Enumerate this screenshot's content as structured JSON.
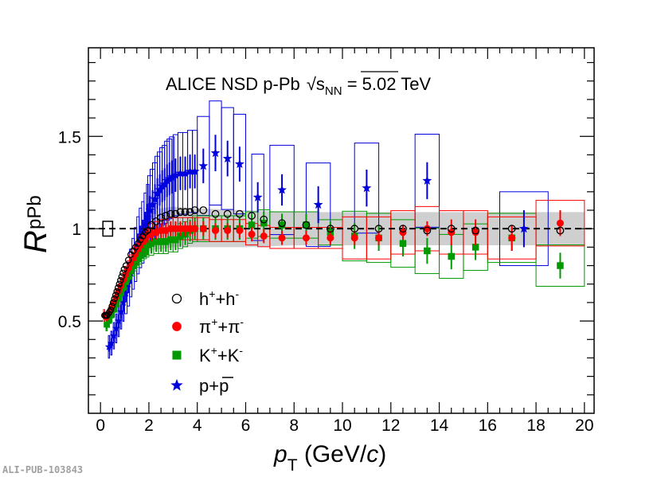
{
  "chart_data": {
    "type": "scatter",
    "title": {
      "prefix": "ALICE NSD p-Pb ",
      "sqrt_symbol": "√",
      "sqrt_var": "s",
      "sqrt_sub": "NN",
      "suffix": " = 5.02 TeV"
    },
    "xlabel": {
      "var": "p",
      "sub": "T",
      "unit_open": " (GeV/",
      "unit_var": "c",
      "unit_close": ")"
    },
    "ylabel": {
      "var": "R",
      "sub": "pPb"
    },
    "xlim": [
      -0.5,
      20.4
    ],
    "ylim": [
      0.0,
      1.98
    ],
    "xticks": [
      0,
      2,
      4,
      6,
      8,
      10,
      12,
      14,
      16,
      18,
      20
    ],
    "xtick_labels": [
      "0",
      "2",
      "4",
      "6",
      "8",
      "10",
      "12",
      "14",
      "16",
      "18",
      "20"
    ],
    "yticks": [
      0.5,
      1.0,
      1.5
    ],
    "ytick_labels": [
      "0.5",
      "1",
      "1.5"
    ],
    "reference_line": 1.0,
    "normalization_box": {
      "x": [
        0.1,
        0.5
      ],
      "y": [
        0.96,
        1.04
      ]
    },
    "gray_band": [
      [
        2.0,
        0.88,
        1.1
      ],
      [
        3.0,
        0.9,
        1.12
      ],
      [
        4.0,
        0.9,
        1.11
      ],
      [
        6.0,
        0.9,
        1.1
      ],
      [
        8.0,
        0.91,
        1.09
      ],
      [
        10.0,
        0.91,
        1.09
      ],
      [
        12.0,
        0.91,
        1.09
      ],
      [
        14.0,
        0.91,
        1.09
      ],
      [
        16.0,
        0.91,
        1.09
      ],
      [
        20.0,
        0.91,
        1.09
      ]
    ],
    "credit": "ALI-PUB-103843",
    "series": [
      {
        "name": "h⁺+h⁻",
        "legend_parts": [
          "h",
          "+",
          "+h",
          "-"
        ],
        "marker": "open-circle",
        "color": "#000000",
        "x": [
          0.175,
          0.225,
          0.275,
          0.325,
          0.375,
          0.425,
          0.475,
          0.525,
          0.575,
          0.625,
          0.675,
          0.725,
          0.775,
          0.825,
          0.875,
          0.925,
          0.975,
          1.05,
          1.15,
          1.25,
          1.35,
          1.45,
          1.55,
          1.65,
          1.75,
          1.85,
          1.95,
          2.1,
          2.3,
          2.5,
          2.7,
          2.9,
          3.1,
          3.3,
          3.5,
          3.7,
          3.9,
          4.25,
          4.75,
          5.25,
          5.75,
          6.25,
          6.75,
          7.5,
          8.5,
          9.5,
          10.5,
          11.5,
          12.5,
          13.5,
          14.5,
          15.5,
          17.0,
          19.0
        ],
        "y": [
          0.53,
          0.53,
          0.53,
          0.54,
          0.55,
          0.56,
          0.58,
          0.6,
          0.62,
          0.64,
          0.66,
          0.68,
          0.7,
          0.72,
          0.74,
          0.76,
          0.78,
          0.8,
          0.83,
          0.86,
          0.88,
          0.9,
          0.92,
          0.94,
          0.96,
          0.98,
          0.99,
          1.02,
          1.04,
          1.06,
          1.07,
          1.08,
          1.08,
          1.09,
          1.09,
          1.09,
          1.1,
          1.1,
          1.08,
          1.08,
          1.08,
          1.07,
          1.05,
          1.03,
          1.02,
          1.0,
          1.0,
          1.0,
          1.0,
          0.99,
          1.0,
          0.99,
          1.0,
          0.99
        ]
      },
      {
        "name": "π⁺+π⁻",
        "legend_parts": [
          "π",
          "+",
          "+π",
          "-"
        ],
        "marker": "filled-circle",
        "color": "#ff0000",
        "x": [
          0.15,
          0.25,
          0.35,
          0.45,
          0.55,
          0.65,
          0.75,
          0.85,
          0.95,
          1.05,
          1.15,
          1.25,
          1.35,
          1.45,
          1.55,
          1.65,
          1.75,
          1.85,
          1.95,
          2.1,
          2.3,
          2.5,
          2.7,
          2.9,
          3.1,
          3.3,
          3.5,
          3.7,
          3.9,
          4.25,
          4.75,
          5.25,
          5.75,
          6.25,
          6.75,
          7.5,
          8.5,
          9.5,
          10.5,
          11.5,
          12.5,
          13.5,
          14.5,
          15.5,
          17.0,
          19.0
        ],
        "y": [
          0.53,
          0.52,
          0.54,
          0.57,
          0.6,
          0.63,
          0.66,
          0.69,
          0.72,
          0.75,
          0.78,
          0.81,
          0.84,
          0.86,
          0.89,
          0.91,
          0.93,
          0.95,
          0.96,
          0.97,
          0.98,
          0.99,
          0.99,
          1.0,
          1.0,
          1.0,
          1.0,
          1.0,
          1.0,
          1.0,
          0.99,
          0.99,
          0.99,
          0.97,
          0.96,
          0.95,
          0.95,
          0.95,
          0.95,
          0.95,
          0.98,
          1.0,
          0.98,
          0.98,
          0.95,
          1.03
        ]
      },
      {
        "name": "K⁺+K⁻",
        "legend_parts": [
          "K",
          "+",
          "+K",
          "-"
        ],
        "marker": "filled-square",
        "color": "#009900",
        "x": [
          0.25,
          0.35,
          0.45,
          0.55,
          0.65,
          0.75,
          0.85,
          0.95,
          1.05,
          1.15,
          1.25,
          1.35,
          1.45,
          1.55,
          1.65,
          1.75,
          1.85,
          1.95,
          2.1,
          2.3,
          2.5,
          2.7,
          2.9,
          3.1,
          3.3,
          3.5,
          3.7,
          3.9,
          4.25,
          4.75,
          5.25,
          5.75,
          6.25,
          6.75,
          7.5,
          8.5,
          9.5,
          10.5,
          11.5,
          12.5,
          13.5,
          14.5,
          15.5,
          17.0,
          19.0
        ],
        "y": [
          0.48,
          0.5,
          0.53,
          0.56,
          0.59,
          0.62,
          0.65,
          0.68,
          0.71,
          0.74,
          0.77,
          0.8,
          0.83,
          0.85,
          0.87,
          0.89,
          0.9,
          0.91,
          0.92,
          0.93,
          0.93,
          0.93,
          0.94,
          0.94,
          0.96,
          0.97,
          0.99,
          1.0,
          1.0,
          1.0,
          1.0,
          1.0,
          1.02,
          1.03,
          1.02,
          1.02,
          0.98,
          0.96,
          0.95,
          0.92,
          0.88,
          0.85,
          0.9,
          0.95,
          0.8
        ]
      },
      {
        "name": "p+p̅",
        "legend_parts": [
          "p+",
          "p"
        ],
        "marker": "filled-star",
        "color": "#0000dd",
        "x": [
          0.35,
          0.45,
          0.55,
          0.65,
          0.75,
          0.85,
          0.95,
          1.05,
          1.15,
          1.25,
          1.35,
          1.45,
          1.55,
          1.65,
          1.75,
          1.85,
          1.95,
          2.05,
          2.15,
          2.25,
          2.35,
          2.45,
          2.55,
          2.65,
          2.75,
          2.85,
          2.95,
          3.1,
          3.3,
          3.5,
          3.7,
          3.9,
          4.25,
          4.75,
          5.25,
          5.75,
          6.5,
          7.5,
          9.0,
          11.0,
          13.5,
          17.5
        ],
        "y": [
          0.36,
          0.38,
          0.42,
          0.46,
          0.5,
          0.55,
          0.6,
          0.65,
          0.7,
          0.76,
          0.81,
          0.86,
          0.91,
          0.95,
          0.98,
          1.02,
          1.06,
          1.1,
          1.13,
          1.16,
          1.19,
          1.21,
          1.23,
          1.24,
          1.26,
          1.27,
          1.28,
          1.29,
          1.3,
          1.3,
          1.31,
          1.31,
          1.34,
          1.41,
          1.38,
          1.35,
          1.17,
          1.21,
          1.13,
          1.22,
          1.26,
          1.0
        ]
      }
    ]
  }
}
